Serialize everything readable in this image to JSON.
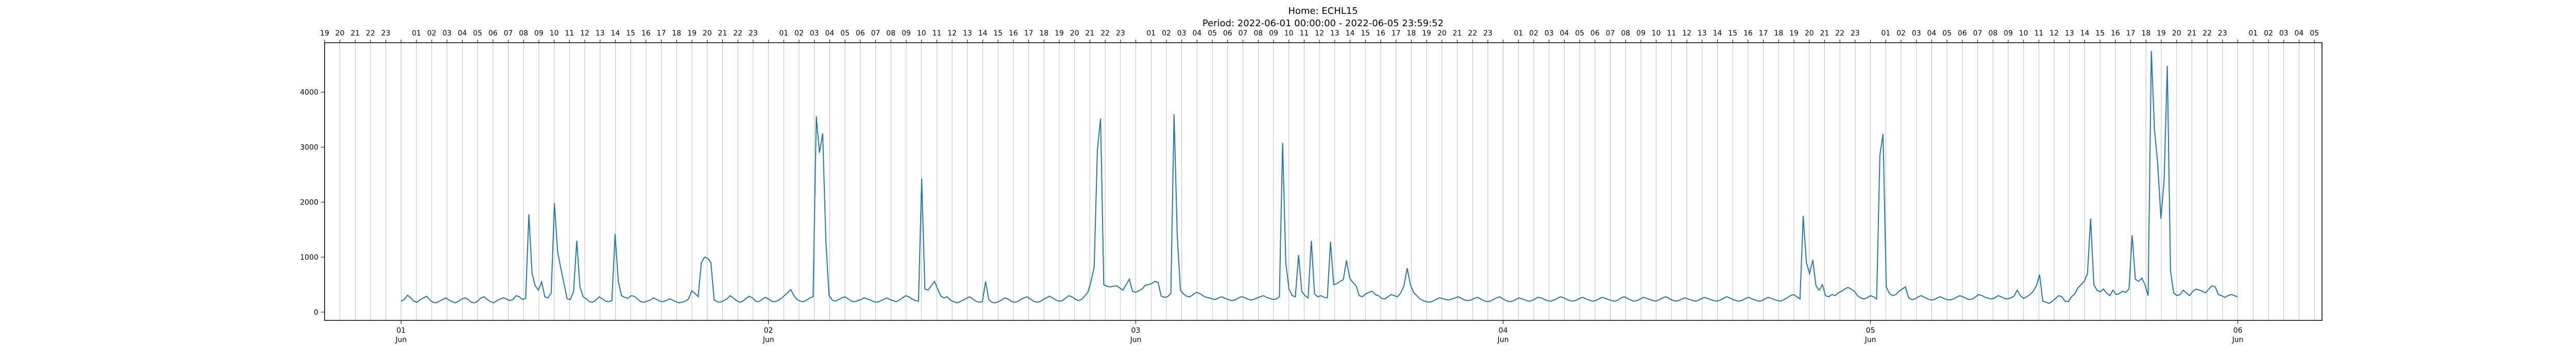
{
  "chart_data": {
    "type": "line",
    "title": "Home: ECHL15",
    "subtitle": "Period: 2022-06-01 00:00:00 - 2022-06-05 23:59:52",
    "xlabel": "",
    "ylabel": "",
    "x_start": "2022-05-31 19:00",
    "x_end": "2022-06-06 05:30",
    "xlim": [
      "2022-05-31 19:00",
      "2022-06-06 05:30"
    ],
    "ylim": [
      -150,
      4900
    ],
    "yticks": [
      0,
      1000,
      2000,
      3000,
      4000
    ],
    "x_date_ticks": [
      {
        "date": "2022-06-01",
        "label": "01",
        "month": "Jun"
      },
      {
        "date": "2022-06-02",
        "label": "02",
        "month": "Jun"
      },
      {
        "date": "2022-06-03",
        "label": "03",
        "month": "Jun"
      },
      {
        "date": "2022-06-04",
        "label": "04",
        "month": "Jun"
      },
      {
        "date": "2022-06-05",
        "label": "05",
        "month": "Jun"
      },
      {
        "date": "2022-06-06",
        "label": "06",
        "month": "Jun"
      }
    ],
    "top_hour_ticks": "hourly 19 (2022-05-31) … 05 (2022-06-06), labels 00–23 with midnight unlabeled",
    "grid": {
      "x": true,
      "y": false
    },
    "series_color": "#1f77b4",
    "series": [
      {
        "name": "",
        "sample_interval_minutes": 10,
        "values": [
          200,
          230,
          310,
          260,
          200,
          180,
          230,
          260,
          290,
          220,
          180,
          170,
          200,
          230,
          260,
          220,
          190,
          170,
          200,
          240,
          260,
          230,
          180,
          170,
          200,
          260,
          280,
          230,
          190,
          170,
          210,
          240,
          260,
          240,
          210,
          230,
          300,
          280,
          230,
          250,
          1780,
          700,
          480,
          400,
          550,
          280,
          260,
          350,
          1980,
          1100,
          800,
          520,
          240,
          230,
          380,
          1300,
          450,
          280,
          240,
          190,
          180,
          220,
          280,
          240,
          200,
          190,
          210,
          1420,
          560,
          300,
          270,
          250,
          300,
          290,
          240,
          190,
          180,
          200,
          220,
          260,
          230,
          200,
          190,
          210,
          240,
          220,
          190,
          170,
          180,
          200,
          240,
          390,
          340,
          280,
          900,
          1000,
          980,
          900,
          220,
          190,
          180,
          210,
          240,
          300,
          260,
          210,
          180,
          200,
          250,
          290,
          260,
          200,
          190,
          230,
          270,
          240,
          200,
          190,
          210,
          250,
          300,
          350,
          410,
          300,
          230,
          200,
          190,
          220,
          260,
          280,
          3560,
          2900,
          3250,
          1300,
          300,
          220,
          200,
          230,
          260,
          280,
          240,
          200,
          190,
          210,
          230,
          260,
          240,
          220,
          190,
          180,
          200,
          230,
          260,
          230,
          210,
          190,
          220,
          260,
          300,
          280,
          240,
          210,
          200,
          2430,
          420,
          400,
          480,
          560,
          420,
          290,
          260,
          280,
          220,
          190,
          170,
          190,
          220,
          250,
          280,
          240,
          200,
          180,
          190,
          560,
          230,
          180,
          170,
          190,
          220,
          260,
          240,
          200,
          180,
          190,
          230,
          260,
          280,
          240,
          200,
          180,
          190,
          230,
          260,
          290,
          260,
          220,
          200,
          210,
          250,
          300,
          280,
          240,
          210,
          230,
          290,
          360,
          560,
          820,
          2950,
          3520,
          500,
          470,
          460,
          470,
          480,
          440,
          400,
          500,
          600,
          380,
          360,
          390,
          420,
          490,
          500,
          520,
          560,
          540,
          290,
          270,
          280,
          340,
          3600,
          1400,
          400,
          330,
          290,
          280,
          320,
          360,
          340,
          300,
          270,
          260,
          240,
          230,
          260,
          280,
          250,
          230,
          210,
          220,
          250,
          280,
          270,
          240,
          220,
          230,
          260,
          280,
          300,
          270,
          250,
          230,
          240,
          280,
          3080,
          900,
          420,
          300,
          280,
          1040,
          380,
          300,
          260,
          1300,
          330,
          280,
          300,
          270,
          260,
          1280,
          500,
          520,
          560,
          590,
          940,
          620,
          540,
          480,
          300,
          280,
          330,
          360,
          380,
          320,
          300,
          250,
          240,
          280,
          320,
          300,
          280,
          350,
          480,
          800,
          500,
          360,
          300,
          240,
          210,
          190,
          180,
          200,
          230,
          260,
          250,
          230,
          220,
          240,
          260,
          280,
          250,
          220,
          210,
          220,
          250,
          270,
          240,
          210,
          190,
          200,
          230,
          260,
          280,
          240,
          210,
          190,
          200,
          230,
          260,
          240,
          220,
          200,
          210,
          240,
          270,
          260,
          230,
          210,
          200,
          220,
          250,
          280,
          260,
          230,
          210,
          200,
          220,
          250,
          270,
          240,
          220,
          200,
          210,
          240,
          270,
          250,
          230,
          210,
          200,
          220,
          260,
          280,
          250,
          220,
          200,
          210,
          240,
          270,
          250,
          230,
          210,
          200,
          230,
          260,
          280,
          250,
          220,
          200,
          210,
          240,
          260,
          240,
          220,
          200,
          210,
          240,
          270,
          250,
          230,
          210,
          200,
          220,
          250,
          280,
          260,
          230,
          210,
          200,
          220,
          250,
          270,
          240,
          220,
          200,
          210,
          240,
          270,
          250,
          230,
          210,
          200,
          230,
          260,
          300,
          320,
          280,
          240,
          1750,
          900,
          700,
          950,
          480,
          400,
          500,
          300,
          280,
          320,
          300,
          350,
          380,
          420,
          450,
          420,
          380,
          300,
          260,
          240,
          260,
          300,
          280,
          240,
          2850,
          3240,
          460,
          340,
          300,
          320,
          380,
          420,
          460,
          260,
          230,
          240,
          280,
          300,
          270,
          240,
          220,
          230,
          260,
          280,
          250,
          230,
          220,
          240,
          270,
          300,
          280,
          250,
          230,
          240,
          280,
          320,
          300,
          270,
          250,
          240,
          260,
          300,
          280,
          250,
          240,
          260,
          290,
          400,
          300,
          250,
          280,
          320,
          380,
          480,
          680,
          200,
          180,
          160,
          200,
          250,
          300,
          280,
          200,
          190,
          280,
          330,
          440,
          500,
          560,
          700,
          1700,
          500,
          400,
          370,
          420,
          350,
          300,
          400,
          320,
          340,
          380,
          360,
          420,
          1400,
          600,
          560,
          620,
          500,
          300,
          4750,
          3300,
          2700,
          1700,
          2400,
          4480,
          750,
          350,
          300,
          320,
          400,
          350,
          300,
          380,
          420,
          400,
          380,
          350,
          420,
          480,
          460,
          320,
          300,
          270,
          300,
          320,
          300,
          280
        ]
      }
    ]
  }
}
